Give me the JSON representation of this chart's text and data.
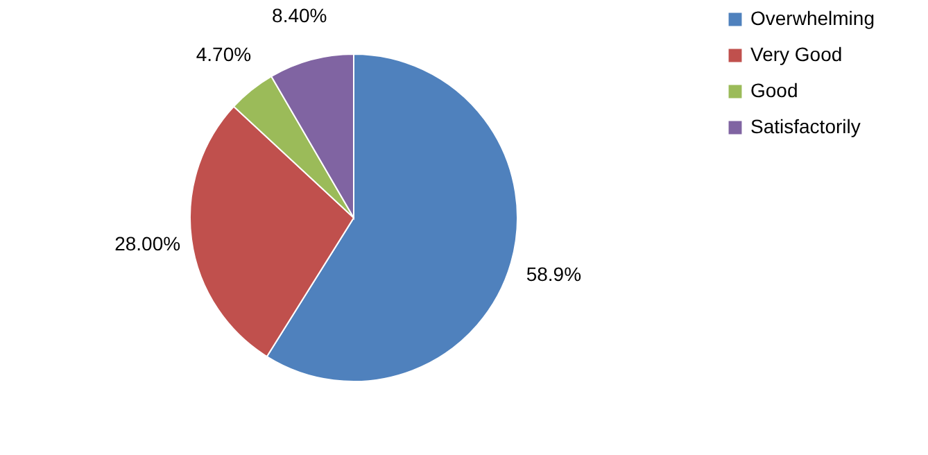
{
  "chart_data": {
    "type": "pie",
    "categories": [
      "Overwhelming",
      "Very Good",
      "Good",
      "Satisfactorily"
    ],
    "values": [
      58.9,
      28.0,
      4.7,
      8.4
    ],
    "colors": [
      "#4f81bd",
      "#c0504d",
      "#9bbb59",
      "#8064a2"
    ],
    "value_labels": [
      "58.9%",
      "28.00%",
      "4.70%",
      "8.40%"
    ],
    "legend": "right"
  }
}
